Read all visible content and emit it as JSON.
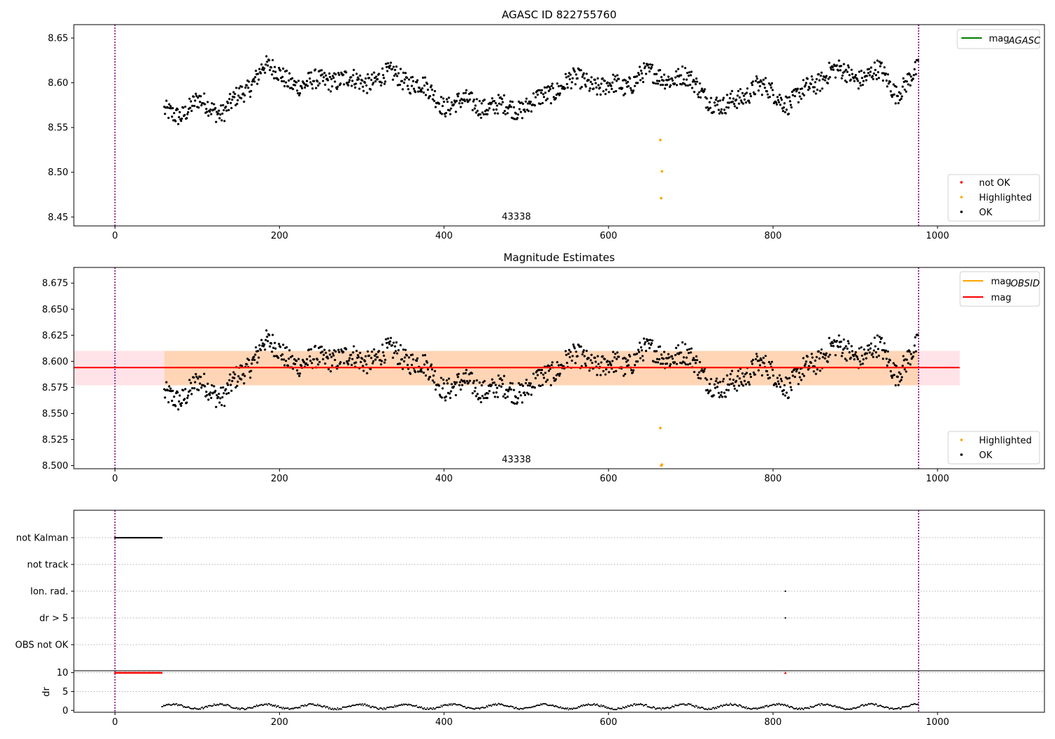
{
  "chart_data": [
    {
      "type": "scatter",
      "title": "AGASC ID 822755760",
      "xlim": [
        -50,
        1130
      ],
      "ylim": [
        8.44,
        8.665
      ],
      "xticks": [
        0,
        200,
        400,
        600,
        800,
        1000
      ],
      "yticks": [
        8.45,
        8.5,
        8.55,
        8.6,
        8.65
      ],
      "vlines": [
        0,
        977
      ],
      "annotation": {
        "text": "43338",
        "x": 488
      },
      "legend_lines": [
        {
          "label": "mag",
          "sub": "AGASC",
          "color": "#008000"
        }
      ],
      "legend_points": [
        {
          "label": "not OK",
          "color": "#ff0000"
        },
        {
          "label": "Highlighted",
          "color": "#ffa500"
        },
        {
          "label": "OK",
          "color": "#000000"
        }
      ],
      "highlighted": [
        [
          663,
          8.536
        ],
        [
          665,
          8.501
        ],
        [
          664,
          8.471
        ]
      ],
      "series_ok_trend": [
        [
          60,
          8.566
        ],
        [
          80,
          8.566
        ],
        [
          100,
          8.578
        ],
        [
          130,
          8.568
        ],
        [
          160,
          8.59
        ],
        [
          180,
          8.622
        ],
        [
          200,
          8.607
        ],
        [
          230,
          8.597
        ],
        [
          260,
          8.605
        ],
        [
          300,
          8.601
        ],
        [
          340,
          8.609
        ],
        [
          370,
          8.598
        ],
        [
          400,
          8.576
        ],
        [
          430,
          8.578
        ],
        [
          460,
          8.573
        ],
        [
          490,
          8.572
        ],
        [
          520,
          8.582
        ],
        [
          550,
          8.603
        ],
        [
          580,
          8.599
        ],
        [
          620,
          8.594
        ],
        [
          640,
          8.612
        ],
        [
          660,
          8.605
        ],
        [
          690,
          8.608
        ],
        [
          720,
          8.585
        ],
        [
          740,
          8.571
        ],
        [
          780,
          8.597
        ],
        [
          820,
          8.578
        ],
        [
          850,
          8.598
        ],
        [
          870,
          8.615
        ],
        [
          900,
          8.606
        ],
        [
          930,
          8.612
        ],
        [
          950,
          8.59
        ],
        [
          977,
          8.613
        ]
      ]
    },
    {
      "type": "scatter",
      "title": "Magnitude Estimates",
      "xlim": [
        -50,
        1130
      ],
      "ylim": [
        8.497,
        8.69
      ],
      "xticks": [
        0,
        200,
        400,
        600,
        800,
        1000
      ],
      "yticks": [
        8.5,
        8.525,
        8.55,
        8.575,
        8.6,
        8.625,
        8.65,
        8.675
      ],
      "ytick_labels": [
        "8.500",
        "8.525",
        "8.550",
        "8.575",
        "8.600",
        "8.625",
        "8.650",
        "8.675"
      ],
      "vlines": [
        0,
        977
      ],
      "annotation": {
        "text": "43338",
        "x": 488
      },
      "mag_line": 8.594,
      "band": [
        8.577,
        8.61
      ],
      "band_x": [
        -50,
        1027
      ],
      "legend_lines": [
        {
          "label": "mag",
          "sub": "OBSID",
          "color": "#ffa500"
        },
        {
          "label": "mag",
          "sub": "",
          "color": "#ff0000"
        }
      ],
      "legend_points": [
        {
          "label": "Highlighted",
          "color": "#ffa500"
        },
        {
          "label": "OK",
          "color": "#000000"
        }
      ],
      "highlighted": [
        [
          663,
          8.536
        ],
        [
          665,
          8.501
        ],
        [
          664,
          8.5
        ]
      ]
    },
    {
      "type": "scatter",
      "title": "",
      "xlim": [
        -50,
        1130
      ],
      "flag_categories": [
        "not Kalman",
        "not track",
        "Ion. rad.",
        "dr > 5",
        "OBS not OK"
      ],
      "flags": {
        "not Kalman": [
          [
            0,
            57
          ]
        ],
        "Ion. rad.": [
          [
            815,
            815
          ]
        ],
        "dr > 5": [
          [
            815,
            815
          ]
        ]
      },
      "vlines": [
        0,
        977
      ]
    },
    {
      "type": "scatter",
      "title": "",
      "ylabel": "dr",
      "xlim": [
        -50,
        1130
      ],
      "ylim": [
        -0.5,
        10.5
      ],
      "xticks": [
        0,
        200,
        400,
        600,
        800,
        1000
      ],
      "yticks": [
        0,
        5,
        10
      ],
      "vlines": [
        0,
        977
      ],
      "clipped": {
        "x": [
          0,
          57
        ],
        "y": 10,
        "extra_x": 815,
        "color": "#ff0000"
      }
    }
  ]
}
